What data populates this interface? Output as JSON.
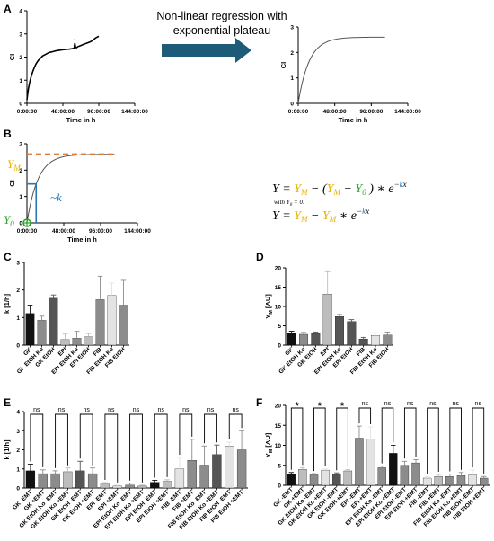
{
  "colors": {
    "ym": "#e8b000",
    "y0": "#2ca02c",
    "k": "#2878b5",
    "plateau_dash": "#e07b39",
    "arrow": "#1e5b78",
    "bar_black": "#111111",
    "bar_dark": "#555555",
    "bar_mid": "#8c8c8c",
    "bar_light": "#bdbdbd",
    "bar_vlight": "#e3e3e3"
  },
  "panel_a": {
    "letter": "A",
    "arrow_text_line1": "Non-linear regression with",
    "arrow_text_line2": "exponential plateau"
  },
  "panel_b": {
    "letter": "B",
    "ym_label": "Y",
    "ym_sub": "M",
    "y0_label": "Y",
    "y0_sub": "0",
    "k_label": "~k",
    "eq1": {
      "lhs": "Y =",
      "ym": "Y",
      "ym_sub": "M",
      "minus_open": "− (",
      "ym2": "Y",
      "ym2_sub": "M",
      "minus": "−",
      "y0": "Y",
      "y0_sub": "0",
      "close": ") ∗",
      "e": "e",
      "exp_minus": "−",
      "exp_k": "k",
      "exp_x": "x"
    },
    "eq_with": "with",
    "eq_with_cond": "= 0:",
    "eq2": {
      "lhs": "Y =",
      "ym": "Y",
      "ym_sub": "M",
      "minus": "−",
      "ym2": "Y",
      "ym2_sub": "M",
      "star": "∗",
      "e": "e",
      "exp_minus": "−",
      "exp_k": "k",
      "exp_x": "x"
    }
  },
  "panel_c": {
    "letter": "C"
  },
  "panel_d": {
    "letter": "D"
  },
  "panel_e": {
    "letter": "E",
    "sig_label": "ns"
  },
  "panel_f": {
    "letter": "F",
    "sig_ns": "ns",
    "sig_star": "*"
  },
  "chart_data": [
    {
      "id": "a-raw",
      "type": "line",
      "xlabel": "Time in h",
      "ylabel": "CI",
      "x_ticks": [
        "0:00:00",
        "48:00:00",
        "96:00:00",
        "144:00:00"
      ],
      "y_ticks": [
        "0",
        "1",
        "2",
        "3",
        "4"
      ],
      "xlim": [
        0,
        144
      ],
      "ylim": [
        0,
        4
      ],
      "series": [
        {
          "x": [
            0,
            1,
            2,
            4,
            6,
            8,
            10,
            12,
            15,
            18,
            21,
            24,
            27,
            30,
            33,
            36,
            40,
            44,
            48,
            52,
            56,
            60,
            63,
            64,
            65,
            66,
            68,
            72,
            76,
            80,
            84,
            88,
            90,
            92,
            96
          ],
          "values": [
            0.15,
            0.4,
            0.65,
            0.95,
            1.2,
            1.4,
            1.55,
            1.7,
            1.85,
            1.95,
            2.05,
            2.1,
            2.15,
            2.2,
            2.22,
            2.25,
            2.28,
            2.3,
            2.32,
            2.33,
            2.34,
            2.36,
            2.38,
            2.6,
            2.42,
            2.4,
            2.45,
            2.5,
            2.55,
            2.6,
            2.65,
            2.72,
            2.78,
            2.83,
            2.9
          ]
        }
      ]
    },
    {
      "id": "a-fit",
      "type": "line",
      "xlabel": "Time in h",
      "ylabel": "CI",
      "x_ticks": [
        "0:00:00",
        "48:00:00",
        "96:00:00",
        "144:00:00"
      ],
      "y_ticks": [
        "0",
        "1",
        "2",
        "3"
      ],
      "xlim": [
        0,
        144
      ],
      "ylim": [
        0,
        3
      ],
      "model": {
        "ym": 2.6,
        "y0": 0,
        "k": 0.07
      },
      "x_max": 114
    },
    {
      "id": "b-schema",
      "type": "line",
      "xlabel": "Time in h",
      "ylabel": "CI",
      "x_ticks": [
        "0:00:00",
        "48:00:00",
        "96:00:00",
        "144:00:00"
      ],
      "y_ticks": [
        "0",
        "1",
        "2",
        "3"
      ],
      "xlim": [
        0,
        144
      ],
      "ylim": [
        0,
        3
      ],
      "model": {
        "ym": 2.6,
        "y0": 0,
        "k": 0.07
      },
      "x_max": 114
    },
    {
      "id": "c",
      "type": "bar",
      "ylabel": "k [1/h]",
      "ylim": [
        0,
        3
      ],
      "y_ticks": [
        "0",
        "1",
        "2",
        "3"
      ],
      "categories": [
        "GK",
        "GK EtOH Ko",
        "GK EtOH",
        "EPI",
        "EPI EtOH Ko",
        "EPI EtOH",
        "FIB",
        "FIB EtOH Ko",
        "FIB EtOH"
      ],
      "values": [
        1.15,
        0.9,
        1.7,
        0.2,
        0.25,
        0.3,
        1.65,
        1.8,
        1.45
      ],
      "errors": [
        0.3,
        0.15,
        0.12,
        0.2,
        0.25,
        0.12,
        0.85,
        0.45,
        0.9
      ],
      "colors": [
        "bar_black",
        "bar_mid",
        "bar_dark",
        "bar_light",
        "bar_mid",
        "bar_light",
        "bar_mid",
        "bar_vlight",
        "bar_mid"
      ]
    },
    {
      "id": "d",
      "type": "bar",
      "ylabel": "Y",
      "ylabel_sub": "M",
      "ylabel_unit": " [AU]",
      "ylim": [
        0,
        20
      ],
      "y_ticks": [
        "0",
        "5",
        "10",
        "15",
        "20"
      ],
      "categories": [
        "GK",
        "GK EtOH Ko",
        "GK EtOH",
        "EPI",
        "EPI EtOH Ko",
        "EPI EtOH",
        "FIB",
        "FIB EtOH Ko",
        "FIB EtOH"
      ],
      "values": [
        3.1,
        2.8,
        3.0,
        13.2,
        7.4,
        6.1,
        1.6,
        2.5,
        2.6
      ],
      "errors": [
        0.5,
        0.5,
        0.4,
        5.8,
        0.5,
        0.5,
        0.4,
        0.7,
        0.8
      ],
      "colors": [
        "bar_black",
        "bar_mid",
        "bar_dark",
        "bar_light",
        "bar_dark",
        "bar_dark",
        "bar_dark",
        "bar_vlight",
        "bar_mid"
      ]
    },
    {
      "id": "e",
      "type": "bar",
      "ylabel": "k [1/h]",
      "ylim": [
        0,
        4
      ],
      "y_ticks": [
        "0",
        "1",
        "2",
        "3",
        "4"
      ],
      "categories": [
        "GK -EMT",
        "GK +EMT",
        "GK EtOH Ko -EMT",
        "GK EtOH Ko +EMT",
        "GK EtOH -EMT",
        "GK EtOH +EMT",
        "EPI -EMT",
        "EPI +EMT",
        "EPI EtOH Ko -EMT",
        "EPI EtOH Ko +EMT",
        "EPI EtOH -EMT",
        "EPI EtOH +EMT",
        "FIB -EMT",
        "FIB +EMT",
        "FIB EtOH Ko -EMT",
        "FIB EtOH Ko +EMT",
        "FIB EtOH -EMT",
        "FIB EtOH +EMT"
      ],
      "values": [
        0.9,
        0.75,
        0.75,
        0.85,
        0.9,
        0.75,
        0.2,
        0.1,
        0.15,
        0.1,
        0.3,
        0.35,
        1.0,
        1.45,
        1.2,
        1.75,
        2.2,
        2.0
      ],
      "errors": [
        0.35,
        0.2,
        0.15,
        0.2,
        0.5,
        0.3,
        0.08,
        0.05,
        0.1,
        0.05,
        0.1,
        0.08,
        0.6,
        1.1,
        1.0,
        0.5,
        0.2,
        1.0
      ],
      "colors": [
        "bar_black",
        "bar_mid",
        "bar_mid",
        "bar_light",
        "bar_dark",
        "bar_mid",
        "bar_light",
        "bar_vlight",
        "bar_mid",
        "bar_light",
        "bar_black",
        "bar_light",
        "bar_vlight",
        "bar_mid",
        "bar_mid",
        "bar_dark",
        "bar_vlight",
        "bar_mid"
      ],
      "brackets": [
        [
          0,
          1
        ],
        [
          2,
          3
        ],
        [
          4,
          5
        ],
        [
          6,
          7
        ],
        [
          8,
          9
        ],
        [
          10,
          11
        ],
        [
          12,
          13
        ],
        [
          14,
          15
        ],
        [
          16,
          17
        ]
      ],
      "bracket_labels": [
        "ns",
        "ns",
        "ns",
        "ns",
        "ns",
        "ns",
        "ns",
        "ns",
        "ns"
      ]
    },
    {
      "id": "f",
      "type": "bar",
      "ylabel": "Y",
      "ylabel_sub": "M",
      "ylabel_unit": " [AU]",
      "ylim": [
        0,
        20
      ],
      "y_ticks": [
        "0",
        "5",
        "10",
        "15",
        "20"
      ],
      "categories": [
        "GK -EMT",
        "GK +EMT",
        "GK EtOH Ko -EMT",
        "GK EtOH Ko +EMT",
        "GK EtOH -EMT",
        "GK EtOH +EMT",
        "EPI -EMT",
        "EPI +EMT",
        "EPI EtOH Ko -EMT",
        "EPI EtOH Ko +EMT",
        "EPI EtOH -EMT",
        "EPI EtOH +EMT",
        "FIB -EMT",
        "FIB +EMT",
        "FIB EtOH Ko -EMT",
        "FIB EtOH Ko +EMT",
        "FIB EtOH -EMT",
        "FIB EtOH +EMT"
      ],
      "values": [
        2.8,
        4.0,
        2.6,
        3.8,
        2.8,
        3.6,
        11.8,
        11.6,
        4.4,
        8.0,
        5.0,
        5.6,
        1.8,
        2.2,
        2.2,
        2.4,
        2.6,
        1.8
      ],
      "errors": [
        0.4,
        0.4,
        0.3,
        0.3,
        0.3,
        0.3,
        3.0,
        3.0,
        0.4,
        2.0,
        1.0,
        0.8,
        0.4,
        0.5,
        0.6,
        0.8,
        1.2,
        0.4
      ],
      "colors": [
        "bar_black",
        "bar_light",
        "bar_mid",
        "bar_vlight",
        "bar_dark",
        "bar_light",
        "bar_mid",
        "bar_vlight",
        "bar_mid",
        "bar_black",
        "bar_mid",
        "bar_mid",
        "bar_vlight",
        "bar_light",
        "bar_mid",
        "bar_mid",
        "bar_vlight",
        "bar_mid"
      ],
      "brackets": [
        [
          0,
          1
        ],
        [
          2,
          3
        ],
        [
          4,
          5
        ],
        [
          6,
          7
        ],
        [
          8,
          9
        ],
        [
          10,
          11
        ],
        [
          12,
          13
        ],
        [
          14,
          15
        ],
        [
          16,
          17
        ]
      ],
      "bracket_labels": [
        "*",
        "*",
        "*",
        "ns",
        "ns",
        "ns",
        "ns",
        "ns",
        "ns"
      ]
    }
  ]
}
